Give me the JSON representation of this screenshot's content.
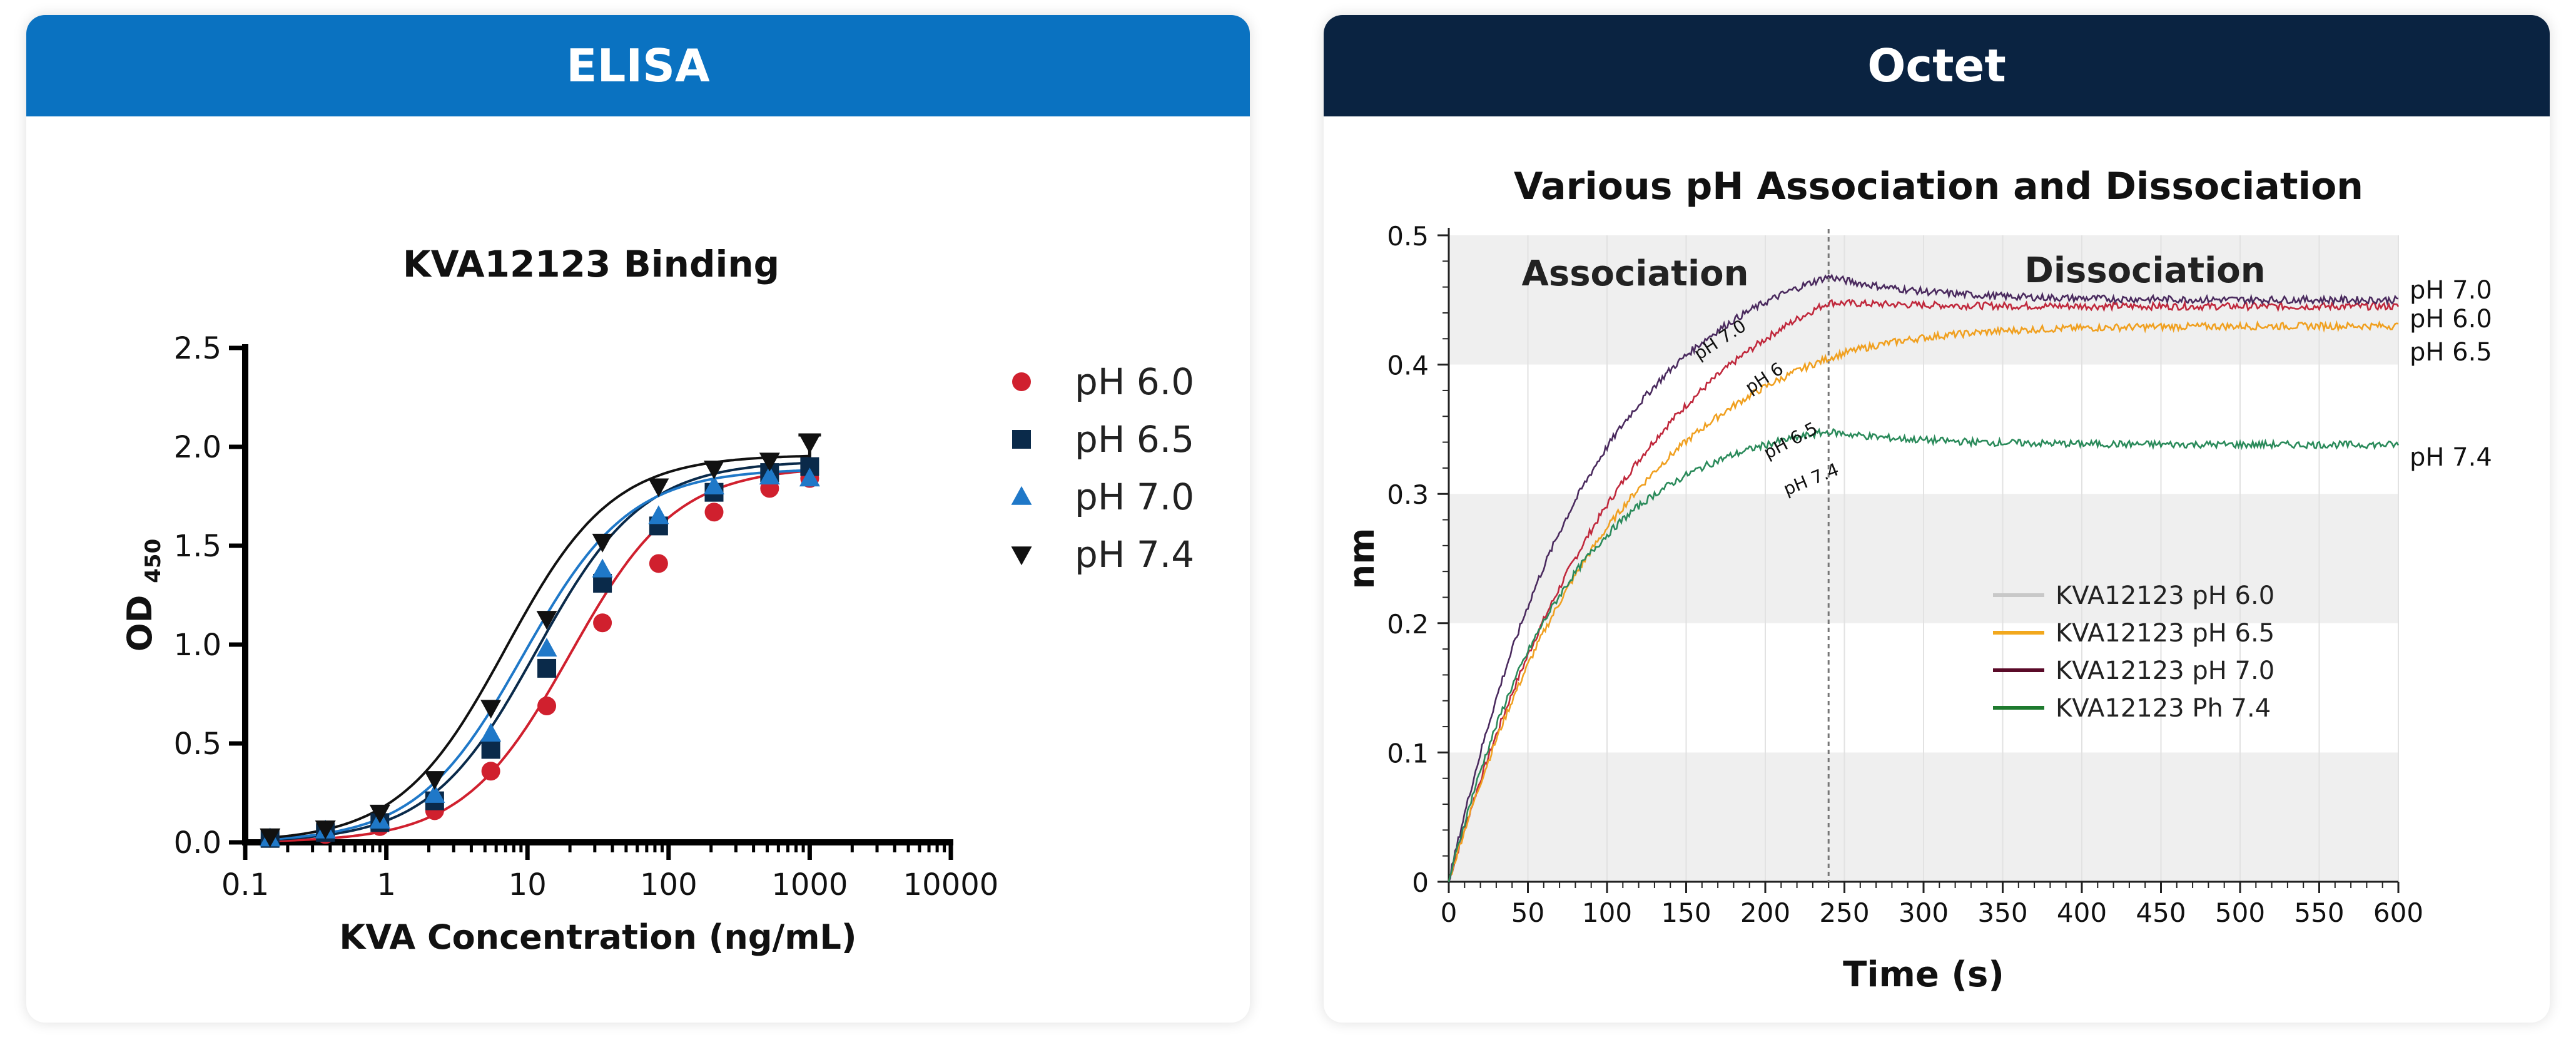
{
  "panels": {
    "elisa_header": "ELISA",
    "octet_header": "Octet"
  },
  "colors": {
    "elisa_header_bg": "#0a72c1",
    "octet_header_bg": "#0a2341"
  },
  "chart_data": [
    {
      "type": "scatter",
      "title": "KVA12123 Binding",
      "xlabel": "KVA Concentration (ng/mL)",
      "ylabel": "OD",
      "ylabel_sub": "450",
      "xscale": "log",
      "xlim": [
        0.1,
        10000
      ],
      "ylim": [
        0,
        2.5
      ],
      "x_ticks": [
        0.1,
        1,
        10,
        100,
        1000,
        10000
      ],
      "x_tick_labels": [
        "0.1",
        "1",
        "10",
        "100",
        "1000",
        "10000"
      ],
      "y_ticks": [
        0,
        0.5,
        1,
        1.5,
        2,
        2.5
      ],
      "y_tick_labels": [
        "0.0",
        "0.5",
        "1.0",
        "1.5",
        "2.0",
        "2.5"
      ],
      "x": [
        0.15,
        0.37,
        0.9,
        2.2,
        5.5,
        13.7,
        34,
        85,
        210,
        520,
        1000
      ],
      "legend_position": "top-right",
      "series": [
        {
          "name": "pH 6.0",
          "marker": "circle",
          "color": "#d0202e",
          "values": [
            0.02,
            0.04,
            0.08,
            0.16,
            0.36,
            0.69,
            1.11,
            1.41,
            1.67,
            1.79,
            1.84
          ],
          "fit": {
            "bottom": 0.0,
            "top": 1.9,
            "ec50": 20,
            "hill": 1.15
          }
        },
        {
          "name": "pH 6.5",
          "marker": "square",
          "color": "#0a2a4a",
          "values": [
            0.02,
            0.05,
            0.1,
            0.21,
            0.47,
            0.88,
            1.31,
            1.6,
            1.77,
            1.87,
            1.9
          ],
          "fit": {
            "bottom": 0.0,
            "top": 1.93,
            "ec50": 11.5,
            "hill": 1.15
          }
        },
        {
          "name": "pH 7.0",
          "marker": "triangle",
          "color": "#1f78c8",
          "values": [
            0.02,
            0.06,
            0.11,
            0.24,
            0.55,
            0.98,
            1.38,
            1.65,
            1.8,
            1.85,
            1.84
          ],
          "fit": {
            "bottom": 0.0,
            "top": 1.89,
            "ec50": 9.3,
            "hill": 1.15
          }
        },
        {
          "name": "pH 7.4",
          "marker": "triangle-down",
          "color": "#111111",
          "values": [
            0.03,
            0.07,
            0.15,
            0.32,
            0.68,
            1.13,
            1.52,
            1.8,
            1.89,
            1.93,
            2.02
          ],
          "fit": {
            "bottom": 0.0,
            "top": 1.96,
            "ec50": 7,
            "hill": 1.15
          }
        }
      ]
    },
    {
      "type": "line",
      "title": "Various pH Association and Dissociation",
      "xlabel": "Time (s)",
      "ylabel": "nm",
      "xlim": [
        0,
        600
      ],
      "ylim": [
        0,
        0.5
      ],
      "x_ticks": [
        0,
        50,
        100,
        150,
        200,
        250,
        300,
        350,
        400,
        450,
        500,
        550,
        600
      ],
      "y_ticks": [
        0,
        0.1,
        0.2,
        0.3,
        0.4,
        0.5
      ],
      "y_tick_labels": [
        "0",
        "0.1",
        "0.2",
        "0.3",
        "0.4",
        "0.5"
      ],
      "shaded_bands": [
        [
          0,
          0.1
        ],
        [
          0.2,
          0.3
        ],
        [
          0.4,
          0.5
        ]
      ],
      "phase_divider_x": 240,
      "phase_labels": [
        "Association",
        "Dissociation"
      ],
      "legend_position": "center-right",
      "series": [
        {
          "name": "KVA12123 pH 6.0",
          "legend_color": "#c8c8c8",
          "line_color": "#c0283c",
          "inline_label": "pH 6",
          "end_label": "pH 6.0",
          "association": {
            "start_y": 0.0,
            "end_y": 0.448,
            "rate": 0.0082
          },
          "dissociation": {
            "start_y": 0.448,
            "end_y": 0.445
          }
        },
        {
          "name": "KVA12123 pH 6.5",
          "legend_color": "#f2a81d",
          "line_color": "#f0a020",
          "inline_label": "pH 6.5",
          "end_label": "pH 6.5",
          "association": {
            "start_y": 0.0,
            "end_y": 0.405,
            "rate": 0.0092
          },
          "dissociation": {
            "start_y": 0.405,
            "end_y": 0.43
          }
        },
        {
          "name": "KVA12123 pH 7.0",
          "legend_color": "#5a0a28",
          "line_color": "#4a2a5e",
          "inline_label": "pH 7.0",
          "end_label": "pH 7.0",
          "association": {
            "start_y": 0.0,
            "end_y": 0.468,
            "rate": 0.011
          },
          "dissociation": {
            "start_y": 0.468,
            "end_y": 0.45
          }
        },
        {
          "name": "KVA12123 Ph 7.4",
          "legend_color": "#1e7a2e",
          "line_color": "#2a8a5a",
          "inline_label": "pH 7.4",
          "end_label": "pH 7.4",
          "association": {
            "start_y": 0.0,
            "end_y": 0.348,
            "rate": 0.0135
          },
          "dissociation": {
            "start_y": 0.348,
            "end_y": 0.338
          }
        }
      ]
    }
  ]
}
